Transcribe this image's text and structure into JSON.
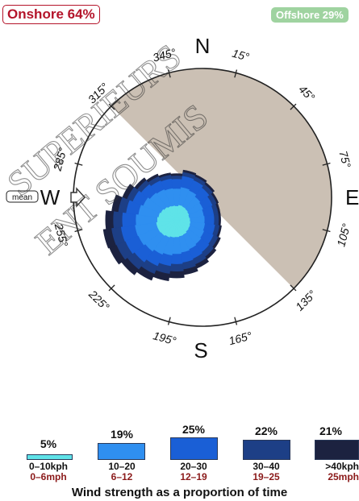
{
  "header": {
    "onshore_label": "Onshore 64%",
    "offshore_label": "Offshore 29%"
  },
  "colors": {
    "onshore_red": "#b4142a",
    "offshore_green": "#9fd3a0",
    "offshore_sector": "#cbc0b4",
    "speed_0_10": "#5fe3e8",
    "speed_10_20": "#2f8ff0",
    "speed_20_30": "#1a5fd6",
    "speed_30_40": "#1d3f86",
    "speed_40_plus": "#1c2240"
  },
  "chart_data": {
    "type": "wind-rose",
    "compass": {
      "north": "N",
      "east": "E",
      "south": "S",
      "west": "W"
    },
    "bearing_labels": [
      "15°",
      "45°",
      "75°",
      "105°",
      "135°",
      "165°",
      "195°",
      "225°",
      "255°",
      "285°",
      "315°",
      "345°"
    ],
    "bearings_deg": [
      15,
      45,
      75,
      105,
      135,
      165,
      195,
      225,
      255,
      285,
      315,
      345
    ],
    "mean_direction_label": "mean",
    "mean_direction_deg": 270,
    "offshore_sector_deg": [
      315,
      135
    ],
    "onshore_percent": 64,
    "offshore_percent": 29,
    "directions_deg": [
      0,
      15,
      30,
      45,
      60,
      75,
      90,
      105,
      120,
      135,
      150,
      165,
      180,
      195,
      210,
      225,
      240,
      255,
      270,
      285,
      300,
      315,
      330,
      345
    ],
    "speed_bins": [
      {
        "kph": "0–10kph",
        "mph": "0–6mph",
        "percent": "5%",
        "color": "#5fe3e8",
        "cumulative_radius": [
          2.4,
          2.6,
          2.5,
          2.4,
          2.3,
          2.2,
          2.3,
          2.4,
          2.5,
          2.6,
          2.8,
          2.9,
          3.0,
          3.1,
          3.3,
          3.5,
          3.6,
          3.6,
          3.4,
          3.2,
          3.0,
          2.8,
          2.6,
          2.5
        ]
      },
      {
        "kph": "10–20",
        "mph": "6–12",
        "percent": "19%",
        "color": "#2f8ff0",
        "cumulative_radius": [
          5.5,
          5.8,
          5.6,
          5.2,
          5.0,
          4.8,
          4.9,
          5.0,
          5.2,
          5.4,
          5.6,
          5.8,
          6.0,
          6.3,
          6.6,
          7.0,
          7.3,
          7.4,
          7.2,
          6.8,
          6.4,
          6.0,
          5.8,
          5.6
        ]
      },
      {
        "kph": "20–30",
        "mph": "12–19",
        "percent": "25%",
        "color": "#1a5fd6",
        "cumulative_radius": [
          7.2,
          7.8,
          7.6,
          7.2,
          6.8,
          6.6,
          6.6,
          6.8,
          7.0,
          7.2,
          7.4,
          7.6,
          7.8,
          8.2,
          8.8,
          9.4,
          9.8,
          9.9,
          9.6,
          9.0,
          8.4,
          7.9,
          7.5,
          7.3
        ]
      },
      {
        "kph": "30–40",
        "mph": "19–25",
        "percent": "22%",
        "color": "#1d3f86",
        "cumulative_radius": [
          7.8,
          8.5,
          8.3,
          8.0,
          7.6,
          7.4,
          7.4,
          7.6,
          7.9,
          8.2,
          8.5,
          8.8,
          9.1,
          9.6,
          10.3,
          11.0,
          11.5,
          11.6,
          11.2,
          10.4,
          9.5,
          8.8,
          8.3,
          8.0
        ]
      },
      {
        "kph": ">40kph",
        "mph": "25mph",
        "percent": "21%",
        "color": "#1c2240",
        "cumulative_radius": [
          8.2,
          8.9,
          8.7,
          8.4,
          8.0,
          7.8,
          7.8,
          8.0,
          8.4,
          8.8,
          9.3,
          9.8,
          10.3,
          10.9,
          11.6,
          12.3,
          12.9,
          13.1,
          12.6,
          11.6,
          10.4,
          9.4,
          8.8,
          8.4
        ]
      }
    ],
    "caption": "Wind strength as a proportion of time"
  }
}
